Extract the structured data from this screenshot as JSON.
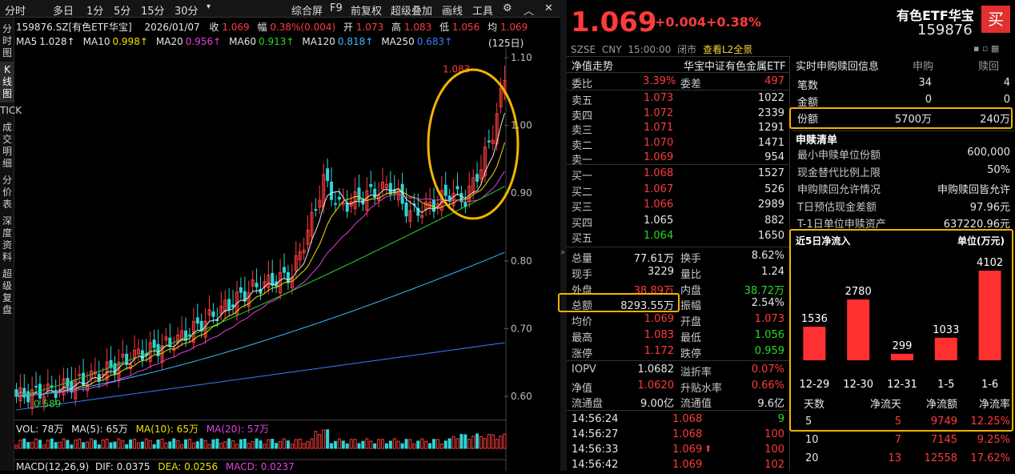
{
  "toolbar": {
    "items": [
      "分时",
      "多日",
      "1分",
      "5分",
      "15分",
      "30分",
      "综合屏",
      "F9",
      "前复权",
      "超级叠加",
      "画线",
      "工具"
    ]
  },
  "sidebar": {
    "items": [
      "分时图",
      "K线图",
      "TICK",
      "成交明细",
      "分价表",
      "深度资料",
      "超级复盘"
    ]
  },
  "chart": {
    "code_label": "159876.SZ[有色ETF华宝]",
    "date": "2026/01/07",
    "close_label": "收",
    "close": "1.069",
    "change_label": "幅",
    "change": "0.38%(0.004)",
    "open_label": "开",
    "open": "1.073",
    "high_label": "高",
    "high": "1.083",
    "low_label": "低",
    "low": "1.056",
    "avg_label": "均",
    "avg": "1.069",
    "ma": [
      {
        "label": "MA5",
        "value": "1.028↑",
        "color": "#e8e8e8"
      },
      {
        "label": "MA10",
        "value": "0.998↑",
        "color": "#f0e000"
      },
      {
        "label": "MA20",
        "value": "0.956↑",
        "color": "#e040e0"
      },
      {
        "label": "MA60",
        "value": "0.913↑",
        "color": "#2bd62b"
      },
      {
        "label": "MA120",
        "value": "0.818↑",
        "color": "#3fb8ff"
      },
      {
        "label": "MA250",
        "value": "0.683↑",
        "color": "#3a7cff"
      }
    ],
    "period": "(125日)",
    "price_ticks": [
      "1.10",
      "1.00",
      "0.90",
      "0.80",
      "0.70",
      "0.60"
    ],
    "hi_mark": "1.083",
    "lo_mark": "0.589",
    "vol_line": "VOL: 78万",
    "vol_ma5": "MA(5): 65万",
    "vol_ma10": "MA(10): 65万",
    "vol_ma20": "MA(20): 57万",
    "macd_line": "MACD(12,26,9)",
    "macd_dif": "DIF: 0.0375",
    "macd_dea": "DEA: 0.0256",
    "macd_val": "MACD: 0.0237"
  },
  "quote": {
    "price": "1.069",
    "chg": "+0.004",
    "pct": "+0.38%",
    "name": "有色ETF华宝",
    "code": "159876",
    "buy_btn": "买",
    "market": "SZSE",
    "currency": "CNY",
    "time": "15:00:00",
    "status": "闭市",
    "l2": "查看L2全景"
  },
  "order": {
    "title": "净值走势",
    "fund": "华宝中证有色金属ETF",
    "weibi_label": "委比",
    "weibi": "3.39%",
    "weicha_label": "委差",
    "weicha": "497",
    "asks": [
      {
        "label": "卖五",
        "price": "1.073",
        "vol": "1022"
      },
      {
        "label": "卖四",
        "price": "1.072",
        "vol": "2339"
      },
      {
        "label": "卖三",
        "price": "1.071",
        "vol": "1291"
      },
      {
        "label": "卖二",
        "price": "1.070",
        "vol": "1471"
      },
      {
        "label": "卖一",
        "price": "1.069",
        "vol": "954"
      }
    ],
    "bids": [
      {
        "label": "买一",
        "price": "1.068",
        "vol": "1527"
      },
      {
        "label": "买二",
        "price": "1.067",
        "vol": "526"
      },
      {
        "label": "买三",
        "price": "1.066",
        "vol": "2989"
      },
      {
        "label": "买四",
        "price": "1.065",
        "vol": "882"
      },
      {
        "label": "买五",
        "price": "1.064",
        "vol": "1650"
      }
    ]
  },
  "stats": {
    "rows": [
      [
        {
          "l": "总量",
          "v": "77.61万",
          "c": "wht"
        },
        {
          "l": "换手",
          "v": "8.62%",
          "c": "wht"
        }
      ],
      [
        {
          "l": "现手",
          "v": "3229",
          "c": "wht"
        },
        {
          "l": "量比",
          "v": "1.24",
          "c": "wht"
        }
      ],
      [
        {
          "l": "外盘",
          "v": "38.89万",
          "c": "red"
        },
        {
          "l": "内盘",
          "v": "38.72万",
          "c": "grn"
        }
      ],
      [
        {
          "l": "总额",
          "v": "8293.55万",
          "c": "wht"
        },
        {
          "l": "振幅",
          "v": "2.54%",
          "c": "wht"
        }
      ],
      [
        {
          "l": "均价",
          "v": "1.069",
          "c": "red"
        },
        {
          "l": "开盘",
          "v": "1.073",
          "c": "red"
        }
      ],
      [
        {
          "l": "最高",
          "v": "1.083",
          "c": "red"
        },
        {
          "l": "最低",
          "v": "1.056",
          "c": "grn"
        }
      ],
      [
        {
          "l": "涨停",
          "v": "1.172",
          "c": "red"
        },
        {
          "l": "跌停",
          "v": "0.959",
          "c": "grn"
        }
      ]
    ],
    "rows2": [
      [
        {
          "l": "IOPV",
          "v": "1.0682",
          "c": "wht"
        },
        {
          "l": "溢折率",
          "v": "0.07%",
          "c": "red"
        }
      ],
      [
        {
          "l": "净值",
          "v": "1.0620",
          "c": "red"
        },
        {
          "l": "升贴水率",
          "v": "0.66%",
          "c": "red"
        }
      ],
      [
        {
          "l": "流通盘",
          "v": "9.00亿",
          "c": "wht"
        },
        {
          "l": "流通值",
          "v": "9.6亿",
          "c": "wht"
        }
      ]
    ]
  },
  "ticks": [
    {
      "t": "14:56:24",
      "p": "1.068",
      "v": "9",
      "vc": "grn",
      "arrow": ""
    },
    {
      "t": "14:56:27",
      "p": "1.068",
      "v": "100",
      "vc": "red",
      "arrow": ""
    },
    {
      "t": "14:56:33",
      "p": "1.069",
      "v": "100",
      "vc": "red",
      "arrow": "⬆"
    },
    {
      "t": "14:56:42",
      "p": "1.069",
      "v": "102",
      "vc": "red",
      "arrow": ""
    }
  ],
  "creation": {
    "title": "实时申购赎回信息",
    "col1": "申购",
    "col2": "赎回",
    "rows": [
      {
        "l": "笔数",
        "a": "34",
        "b": "4"
      },
      {
        "l": "金额",
        "a": "0",
        "b": "0"
      },
      {
        "l": "份额",
        "a": "5700万",
        "b": "240万"
      }
    ]
  },
  "pcf": {
    "title": "申赎清单",
    "rows": [
      {
        "l": "最小申赎单位份额",
        "v": "600,000"
      },
      {
        "l": "现金替代比例上限",
        "v": "50%"
      },
      {
        "l": "申购赎回允许情况",
        "v": "申购赎回皆允许"
      },
      {
        "l": "T日预估现金差额",
        "v": "97.96元"
      },
      {
        "l": "T-1日单位申赎资产",
        "v": "637220.96元"
      }
    ]
  },
  "inflow": {
    "title": "近5日净流入",
    "unit": "单位(万元)"
  },
  "chart_data": {
    "type": "bar",
    "categories": [
      "12-29",
      "12-30",
      "12-31",
      "1-5",
      "1-6"
    ],
    "values": [
      1536,
      2780,
      299,
      1033,
      4102
    ],
    "title": "近5日净流入",
    "ylabel": "单位(万元)"
  },
  "inflow_table": {
    "headers": [
      "天数",
      "净流天",
      "净流额",
      "净流率"
    ],
    "rows": [
      [
        "5",
        "5",
        "9749",
        "12.25%"
      ],
      [
        "10",
        "7",
        "7145",
        "9.25%"
      ],
      [
        "20",
        "13",
        "12558",
        "17.62%"
      ]
    ]
  }
}
